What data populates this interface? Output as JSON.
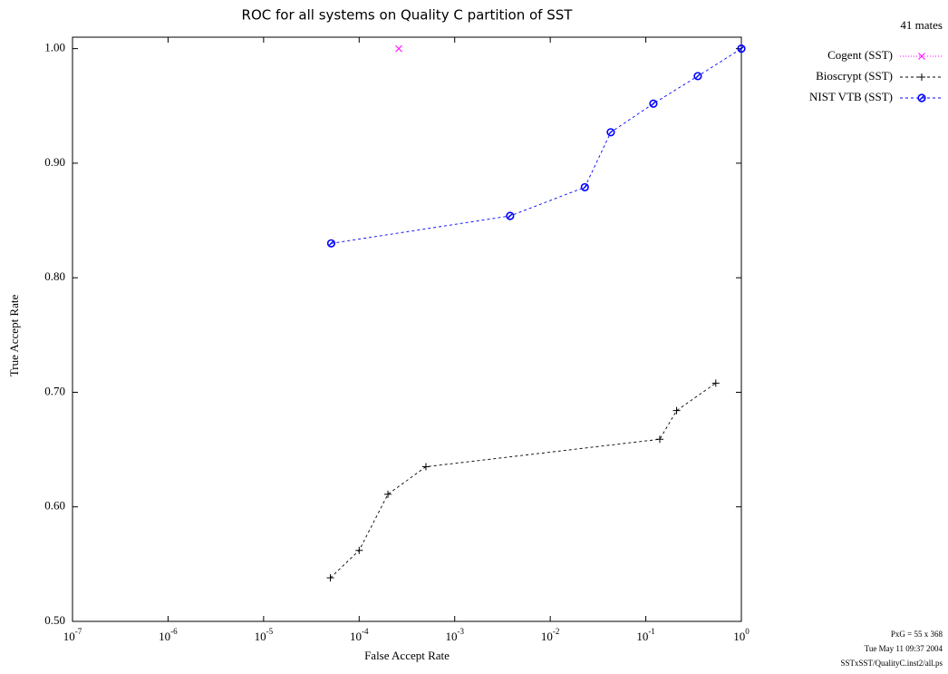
{
  "chart_data": {
    "type": "line",
    "title": "ROC for all systems on Quality C partition of SST",
    "x_label": "False Accept Rate",
    "y_label": "True Accept Rate",
    "xscale": "log",
    "xlim": [
      1e-07,
      1
    ],
    "xticks": [
      {
        "value": 1e-07,
        "label": "10-7"
      },
      {
        "value": 1e-06,
        "label": "10-6"
      },
      {
        "value": 1e-05,
        "label": "10-5"
      },
      {
        "value": 0.0001,
        "label": "10-4"
      },
      {
        "value": 0.001,
        "label": "10-3"
      },
      {
        "value": 0.01,
        "label": "10-2"
      },
      {
        "value": 0.1,
        "label": "10-1"
      },
      {
        "value": 1,
        "label": "100"
      }
    ],
    "ylim": [
      0.5,
      1.01
    ],
    "yticks": [
      {
        "value": 0.5,
        "label": "0.50"
      },
      {
        "value": 0.6,
        "label": "0.60"
      },
      {
        "value": 0.7,
        "label": "0.70"
      },
      {
        "value": 0.8,
        "label": "0.80"
      },
      {
        "value": 0.9,
        "label": "0.90"
      },
      {
        "value": 1.0,
        "label": "1.00"
      }
    ],
    "legend_title": "41 mates",
    "legend_position": "right",
    "series": [
      {
        "name": "Cogent (SST)",
        "color": "#ff00ff",
        "marker": "x",
        "line": "dotted",
        "x": [
          0.00026
        ],
        "values": [
          1.0
        ]
      },
      {
        "name": "Bioscrypt (SST)",
        "color": "#000000",
        "marker": "+",
        "line": "dashed",
        "x": [
          5e-05,
          0.0001,
          0.0002,
          0.0005,
          0.14,
          0.21,
          0.54
        ],
        "values": [
          0.538,
          0.562,
          0.611,
          0.635,
          0.659,
          0.684,
          0.708
        ]
      },
      {
        "name": "NIST VTB (SST)",
        "color": "#0000ff",
        "marker": "circle",
        "line": "dashed",
        "x": [
          5.1e-05,
          0.0038,
          0.023,
          0.043,
          0.12,
          0.35,
          1
        ],
        "values": [
          0.83,
          0.854,
          0.879,
          0.927,
          0.952,
          0.976,
          1.0
        ]
      }
    ],
    "footer": [
      "PxG = 55 x 368",
      "Tue May 11 09:37 2004",
      "SSTxSST/QualityC.inst2/all.ps"
    ]
  }
}
